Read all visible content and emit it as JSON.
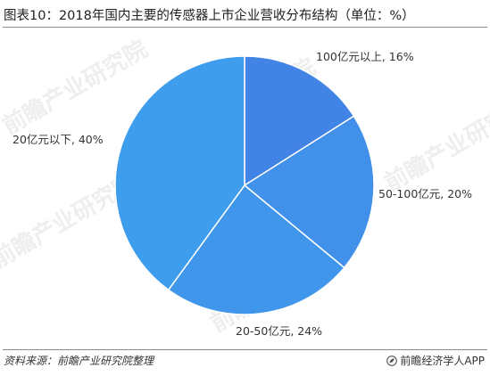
{
  "title": "图表10：2018年国内主要的传感器上市企业营收分布结构（单位：%）",
  "source": "资料来源：前瞻产业研究院整理",
  "brand": "前瞻经济学人APP",
  "watermark": "前瞻产业研究院",
  "icons": {
    "brand": "leaf-logo-icon"
  },
  "colors": {
    "slice_1": "#4283E6",
    "slice_2": "#4190EA",
    "slice_3": "#3F96EB",
    "slice_4": "#3E9DEC",
    "slice_border": "#ffffff",
    "rule": "#8a8a8a"
  },
  "chart_data": {
    "type": "pie",
    "title": "图表10：2018年国内主要的传感器上市企业营收分布结构（单位：%）",
    "unit": "%",
    "start_angle": "12 o'clock",
    "direction": "clockwise",
    "categories": [
      "100亿元以上",
      "50-100亿元",
      "20-50亿元",
      "20亿元以下"
    ],
    "values": [
      16,
      20,
      24,
      40
    ],
    "labels": [
      "100亿元以上, 16%",
      "50-100亿元, 20%",
      "20-50亿元, 24%",
      "20亿元以下, 40%"
    ]
  }
}
